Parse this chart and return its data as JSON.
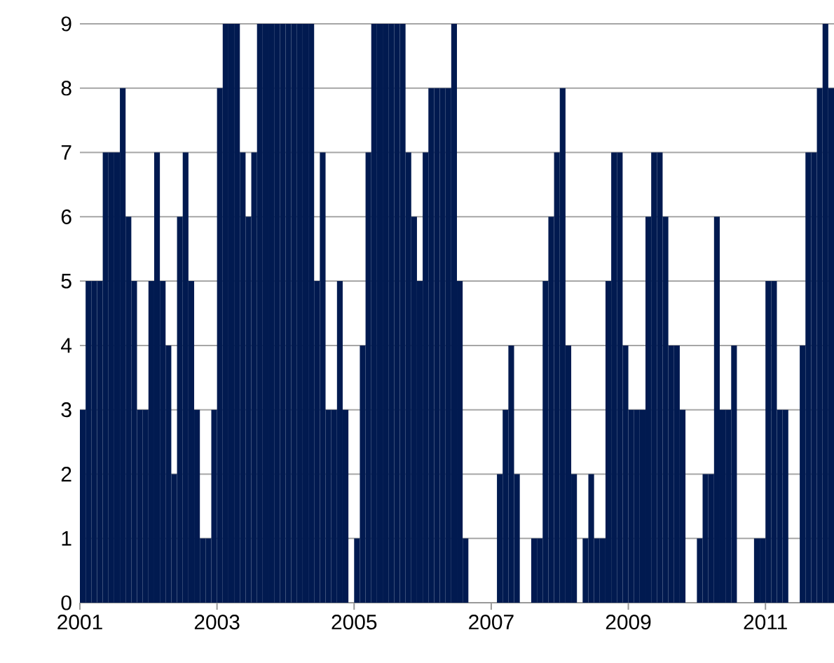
{
  "chart_data": {
    "type": "bar",
    "x": [
      "2001-01",
      "2001-02",
      "2001-03",
      "2001-04",
      "2001-05",
      "2001-06",
      "2001-07",
      "2001-08",
      "2001-09",
      "2001-10",
      "2001-11",
      "2001-12",
      "2002-01",
      "2002-02",
      "2002-03",
      "2002-04",
      "2002-05",
      "2002-06",
      "2002-07",
      "2002-08",
      "2002-09",
      "2002-10",
      "2002-11",
      "2002-12",
      "2003-01",
      "2003-02",
      "2003-03",
      "2003-04",
      "2003-05",
      "2003-06",
      "2003-07",
      "2003-08",
      "2003-09",
      "2003-10",
      "2003-11",
      "2003-12",
      "2004-01",
      "2004-02",
      "2004-03",
      "2004-04",
      "2004-05",
      "2004-06",
      "2004-07",
      "2004-08",
      "2004-09",
      "2004-10",
      "2004-11",
      "2004-12",
      "2005-01",
      "2005-02",
      "2005-03",
      "2005-04",
      "2005-05",
      "2005-06",
      "2005-07",
      "2005-08",
      "2005-09",
      "2005-10",
      "2005-11",
      "2005-12",
      "2006-01",
      "2006-02",
      "2006-03",
      "2006-04",
      "2006-05",
      "2006-06",
      "2006-07",
      "2006-08",
      "2006-09",
      "2006-10",
      "2006-11",
      "2006-12",
      "2007-01",
      "2007-02",
      "2007-03",
      "2007-04",
      "2007-05",
      "2007-06",
      "2007-07",
      "2007-08",
      "2007-09",
      "2007-10",
      "2007-11",
      "2007-12",
      "2008-01",
      "2008-02",
      "2008-03",
      "2008-04",
      "2008-05",
      "2008-06",
      "2008-07",
      "2008-08",
      "2008-09",
      "2008-10",
      "2008-11",
      "2008-12",
      "2009-01",
      "2009-02",
      "2009-03",
      "2009-04",
      "2009-05",
      "2009-06",
      "2009-07",
      "2009-08",
      "2009-09",
      "2009-10",
      "2009-11",
      "2009-12",
      "2010-01",
      "2010-02",
      "2010-03",
      "2010-04",
      "2010-05",
      "2010-06",
      "2010-07",
      "2010-08",
      "2010-09",
      "2010-10",
      "2010-11",
      "2010-12",
      "2011-01",
      "2011-02",
      "2011-03",
      "2011-04",
      "2011-05",
      "2011-06",
      "2011-07",
      "2011-08",
      "2011-09",
      "2011-10",
      "2011-11",
      "2011-12"
    ],
    "values": [
      3,
      5,
      5,
      5,
      7,
      7,
      7,
      8,
      6,
      5,
      3,
      3,
      5,
      7,
      5,
      4,
      2,
      6,
      7,
      5,
      3,
      1,
      1,
      3,
      8,
      9,
      9,
      9,
      7,
      6,
      7,
      9,
      9,
      9,
      9,
      9,
      9,
      9,
      9,
      9,
      9,
      5,
      7,
      3,
      3,
      5,
      3,
      0,
      1,
      4,
      7,
      9,
      9,
      9,
      9,
      9,
      9,
      7,
      6,
      5,
      7,
      8,
      8,
      8,
      8,
      9,
      5,
      1,
      0,
      0,
      0,
      0,
      0,
      2,
      3,
      4,
      2,
      0,
      0,
      1,
      1,
      5,
      6,
      7,
      8,
      4,
      2,
      0,
      1,
      2,
      1,
      1,
      5,
      7,
      7,
      4,
      3,
      3,
      3,
      6,
      7,
      7,
      6,
      4,
      4,
      3,
      0,
      0,
      1,
      2,
      2,
      6,
      3,
      3,
      4,
      0,
      0,
      0,
      1,
      1,
      5,
      5,
      3,
      3,
      0,
      0,
      4,
      7,
      7,
      8,
      9,
      8
    ],
    "color": "#011a50",
    "xlim": [
      "2001",
      "2012"
    ],
    "xticks": [
      "2001",
      "2003",
      "2005",
      "2007",
      "2009",
      "2011"
    ],
    "ylim": [
      0,
      9
    ],
    "yticks": [
      0,
      1,
      2,
      3,
      4,
      5,
      6,
      7,
      8,
      9
    ],
    "grid": "y"
  }
}
